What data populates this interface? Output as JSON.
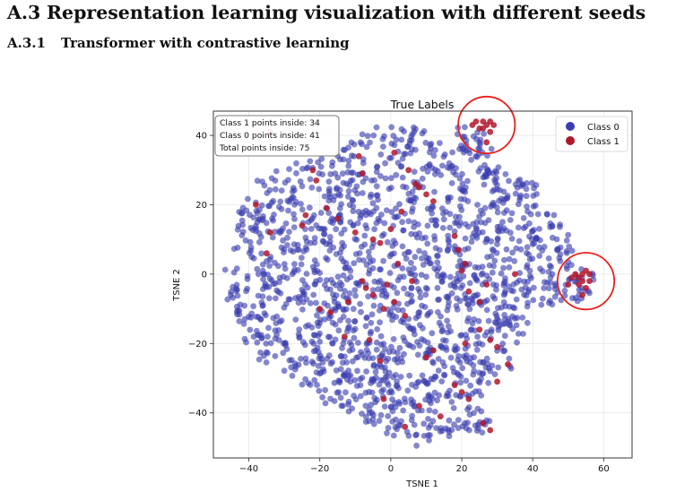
{
  "section": {
    "number": "A.3",
    "title": "Representation learning visualization with different seeds"
  },
  "subsection": {
    "number": "A.3.1",
    "title": "Transformer with contrastive learning"
  },
  "chart_data": {
    "type": "scatter",
    "title": "True Labels",
    "xlabel": "TSNE 1",
    "ylabel": "TSNE 2",
    "xlim": [
      -50,
      68
    ],
    "ylim": [
      -53,
      47
    ],
    "xticks": [
      -40,
      -20,
      0,
      20,
      40,
      60
    ],
    "yticks": [
      -40,
      -20,
      0,
      20,
      40
    ],
    "grid": true,
    "legend_position": "top-right",
    "annotation": {
      "lines": [
        "Class 1 points inside: 34",
        "Class 0 points inside: 41",
        "Total points inside: 75"
      ],
      "position": "top-left"
    },
    "regions": [
      {
        "shape": "circle",
        "center": [
          27,
          43
        ],
        "radius": 8,
        "color": "#e8211b"
      },
      {
        "shape": "circle",
        "center": [
          55,
          -2
        ],
        "radius": 8,
        "color": "#e8211b"
      }
    ],
    "series": [
      {
        "name": "Class 0",
        "color": "#3a3daf",
        "approx_count": 1700
      },
      {
        "name": "Class 1",
        "color": "#b2182b",
        "points": [
          [
            24,
            44
          ],
          [
            26,
            44
          ],
          [
            27,
            43
          ],
          [
            25,
            42
          ],
          [
            28,
            44
          ],
          [
            29,
            43
          ],
          [
            26,
            42
          ],
          [
            28,
            41
          ],
          [
            23,
            43
          ],
          [
            27,
            38
          ],
          [
            52,
            0
          ],
          [
            53,
            -1
          ],
          [
            54,
            0
          ],
          [
            55,
            1
          ],
          [
            56,
            0
          ],
          [
            54,
            -2
          ],
          [
            53,
            -3
          ],
          [
            55,
            -4
          ],
          [
            51,
            -1
          ],
          [
            56,
            -2
          ],
          [
            54,
            -6
          ],
          [
            50,
            -3
          ],
          [
            -34,
            41
          ],
          [
            -22,
            30
          ],
          [
            -21,
            27
          ],
          [
            -38,
            20
          ],
          [
            -34,
            12
          ],
          [
            -35,
            6
          ],
          [
            -24,
            17
          ],
          [
            -18,
            19
          ],
          [
            -10,
            12
          ],
          [
            -5,
            10
          ],
          [
            -3,
            9
          ],
          [
            0,
            13
          ],
          [
            3,
            18
          ],
          [
            5,
            30
          ],
          [
            1,
            35
          ],
          [
            -8,
            29
          ],
          [
            7,
            26
          ],
          [
            8,
            25
          ],
          [
            10,
            23
          ],
          [
            12,
            21
          ],
          [
            18,
            11
          ],
          [
            19,
            7
          ],
          [
            21,
            3
          ],
          [
            20,
            1
          ],
          [
            -8,
            -2
          ],
          [
            -7,
            -4
          ],
          [
            -12,
            -8
          ],
          [
            -5,
            -6
          ],
          [
            -2,
            -10
          ],
          [
            1,
            -8
          ],
          [
            4,
            -12
          ],
          [
            -6,
            -19
          ],
          [
            -3,
            -25
          ],
          [
            -13,
            -18
          ],
          [
            -20,
            -10
          ],
          [
            22,
            -5
          ],
          [
            25,
            -8
          ],
          [
            25,
            -16
          ],
          [
            28,
            -19
          ],
          [
            30,
            -21
          ],
          [
            21,
            -20
          ],
          [
            33,
            -26
          ],
          [
            30,
            -31
          ],
          [
            20,
            -34
          ],
          [
            22,
            -36
          ],
          [
            18,
            -32
          ],
          [
            10,
            -24
          ],
          [
            8,
            -38
          ],
          [
            -2,
            -36
          ],
          [
            4,
            -44
          ],
          [
            14,
            -41
          ],
          [
            26,
            -43
          ],
          [
            28,
            -45
          ],
          [
            -17,
            -11
          ],
          [
            -15,
            16
          ],
          [
            -25,
            14
          ],
          [
            27,
            -3
          ],
          [
            -9,
            34
          ],
          [
            6,
            -2
          ],
          [
            2,
            3
          ],
          [
            -1,
            -3
          ],
          [
            12,
            -22
          ],
          [
            35,
            0
          ]
        ]
      }
    ]
  }
}
